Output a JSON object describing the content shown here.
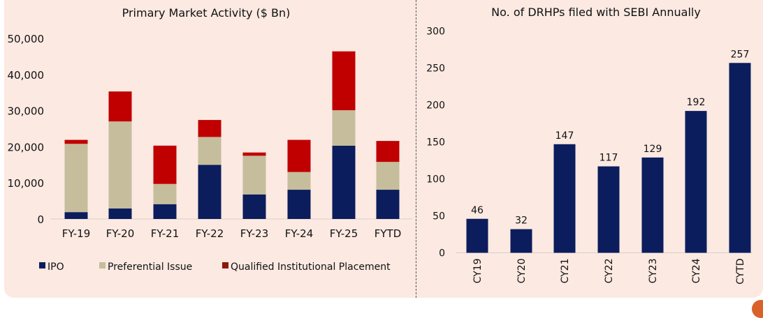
{
  "chart_data": [
    {
      "type": "bar",
      "stacked": true,
      "title": "Primary Market Activity ($ Bn)",
      "categories": [
        "FY-19",
        "FY-20",
        "FY-21",
        "FY-22",
        "FY-23",
        "FY-24",
        "FY-25",
        "FYTD"
      ],
      "series": [
        {
          "name": "IPO",
          "color": "#0b1d5c",
          "values": [
            1900,
            2900,
            4100,
            15000,
            6800,
            8100,
            20300,
            8100
          ]
        },
        {
          "name": "Preferential Issue",
          "color": "#c6bd9c",
          "values": [
            18900,
            24100,
            5600,
            7700,
            10700,
            4900,
            9800,
            7700
          ]
        },
        {
          "name": "Qualified Institutional Placement",
          "color": "#c00000",
          "values": [
            1100,
            8300,
            10600,
            4700,
            900,
            8900,
            16300,
            5800
          ]
        }
      ],
      "yticks": [
        "0",
        "10,000",
        "20,000",
        "30,000",
        "40,000",
        "50,000"
      ],
      "ylim": [
        0,
        50000
      ],
      "legend": "bottom",
      "grid": false
    },
    {
      "type": "bar",
      "title": "No. of DRHPs filed with SEBI Annually",
      "categories": [
        "CY19",
        "CY20",
        "CY21",
        "CY22",
        "CY23",
        "CY24",
        "CYTD"
      ],
      "values": [
        46,
        32,
        147,
        117,
        129,
        192,
        257
      ],
      "data_labels": [
        "46",
        "32",
        "147",
        "117",
        "129",
        "192",
        "257"
      ],
      "color": "#0b1d5c",
      "yticks": [
        "0",
        "50",
        "100",
        "150",
        "200",
        "250",
        "300"
      ],
      "ylim": [
        0,
        300
      ],
      "grid": false
    }
  ]
}
